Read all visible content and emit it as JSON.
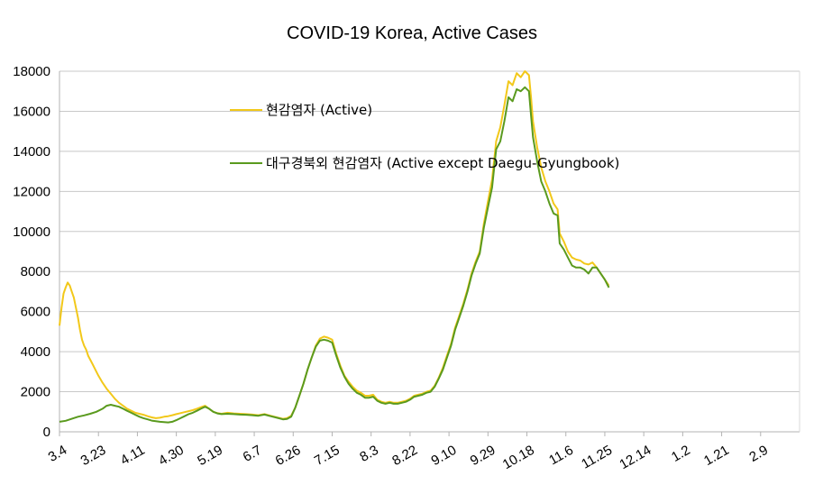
{
  "chart_data": {
    "type": "line",
    "title": "COVID-19 Korea, Active Cases",
    "xlabel": "",
    "ylabel": "",
    "ylim": [
      0,
      18000
    ],
    "yticks": [
      0,
      2000,
      4000,
      6000,
      8000,
      10000,
      12000,
      14000,
      16000,
      18000
    ],
    "xtick_labels": [
      "3.4",
      "3.23",
      "4.11",
      "4.30",
      "5.19",
      "6.7",
      "6.26",
      "7.15",
      "8.3",
      "8.22",
      "9.10",
      "9.29",
      "10.18",
      "11.6",
      "11.25",
      "12.14",
      "1.2",
      "1.21",
      "2.9"
    ],
    "grid": "horizontal",
    "legend_position": "upper-left inside plot",
    "x_start": "3.4",
    "x_step_days": 19,
    "series": [
      {
        "name": "현감염자 (Active)",
        "color": "#f2c81a",
        "points": [
          [
            0,
            5300
          ],
          [
            1,
            6200
          ],
          [
            2,
            6900
          ],
          [
            3,
            7200
          ],
          [
            4,
            7450
          ],
          [
            5,
            7300
          ],
          [
            6,
            7000
          ],
          [
            7,
            6700
          ],
          [
            8,
            6200
          ],
          [
            9,
            5700
          ],
          [
            10,
            5100
          ],
          [
            11,
            4600
          ],
          [
            12,
            4300
          ],
          [
            13,
            4100
          ],
          [
            14,
            3800
          ],
          [
            15,
            3600
          ],
          [
            16,
            3400
          ],
          [
            17,
            3200
          ],
          [
            18,
            3000
          ],
          [
            19,
            2800
          ],
          [
            21,
            2450
          ],
          [
            23,
            2150
          ],
          [
            25,
            1900
          ],
          [
            27,
            1650
          ],
          [
            29,
            1450
          ],
          [
            31,
            1300
          ],
          [
            33,
            1150
          ],
          [
            35,
            1050
          ],
          [
            37,
            950
          ],
          [
            39,
            900
          ],
          [
            41,
            850
          ],
          [
            43,
            780
          ],
          [
            45,
            720
          ],
          [
            47,
            680
          ],
          [
            49,
            700
          ],
          [
            51,
            750
          ],
          [
            53,
            780
          ],
          [
            55,
            830
          ],
          [
            57,
            880
          ],
          [
            59,
            930
          ],
          [
            61,
            980
          ],
          [
            63,
            1030
          ],
          [
            65,
            1080
          ],
          [
            67,
            1150
          ],
          [
            69,
            1230
          ],
          [
            71,
            1300
          ],
          [
            73,
            1150
          ],
          [
            75,
            1000
          ],
          [
            77,
            930
          ],
          [
            79,
            900
          ],
          [
            82,
            950
          ],
          [
            85,
            920
          ],
          [
            88,
            900
          ],
          [
            91,
            880
          ],
          [
            94,
            860
          ],
          [
            97,
            830
          ],
          [
            100,
            880
          ],
          [
            103,
            800
          ],
          [
            106,
            720
          ],
          [
            109,
            650
          ],
          [
            111,
            680
          ],
          [
            113,
            800
          ],
          [
            115,
            1200
          ],
          [
            117,
            1800
          ],
          [
            119,
            2400
          ],
          [
            121,
            3100
          ],
          [
            123,
            3700
          ],
          [
            125,
            4300
          ],
          [
            127,
            4650
          ],
          [
            129,
            4750
          ],
          [
            131,
            4700
          ],
          [
            133,
            4600
          ],
          [
            135,
            3900
          ],
          [
            137,
            3300
          ],
          [
            139,
            2800
          ],
          [
            141,
            2500
          ],
          [
            143,
            2250
          ],
          [
            145,
            2050
          ],
          [
            147,
            1950
          ],
          [
            149,
            1800
          ],
          [
            151,
            1800
          ],
          [
            153,
            1850
          ],
          [
            155,
            1600
          ],
          [
            157,
            1500
          ],
          [
            159,
            1450
          ],
          [
            161,
            1500
          ],
          [
            163,
            1450
          ],
          [
            165,
            1450
          ],
          [
            167,
            1500
          ],
          [
            169,
            1550
          ],
          [
            171,
            1650
          ],
          [
            173,
            1800
          ],
          [
            175,
            1850
          ],
          [
            177,
            1900
          ],
          [
            179,
            2000
          ],
          [
            181,
            2050
          ],
          [
            183,
            2300
          ],
          [
            185,
            2700
          ],
          [
            187,
            3200
          ],
          [
            189,
            3800
          ],
          [
            191,
            4400
          ],
          [
            193,
            5200
          ],
          [
            195,
            5800
          ],
          [
            197,
            6400
          ],
          [
            199,
            7100
          ],
          [
            201,
            7900
          ],
          [
            203,
            8500
          ],
          [
            205,
            9000
          ],
          [
            207,
            10400
          ],
          [
            209,
            11500
          ],
          [
            211,
            12600
          ],
          [
            213,
            14500
          ],
          [
            215,
            15200
          ],
          [
            217,
            16300
          ],
          [
            219,
            17500
          ],
          [
            221,
            17300
          ],
          [
            223,
            17900
          ],
          [
            225,
            17700
          ],
          [
            227,
            18000
          ],
          [
            229,
            17800
          ],
          [
            230,
            16700
          ],
          [
            231,
            15500
          ],
          [
            233,
            14200
          ],
          [
            235,
            13200
          ],
          [
            237,
            12500
          ],
          [
            239,
            12000
          ],
          [
            241,
            11400
          ],
          [
            243,
            11100
          ],
          [
            244,
            9900
          ],
          [
            246,
            9500
          ],
          [
            248,
            9000
          ],
          [
            250,
            8700
          ],
          [
            252,
            8600
          ],
          [
            254,
            8550
          ],
          [
            256,
            8400
          ],
          [
            258,
            8350
          ],
          [
            260,
            8450
          ],
          [
            262,
            8200
          ],
          [
            264,
            7900
          ],
          [
            266,
            7600
          ],
          [
            268,
            7300
          ]
        ]
      },
      {
        "name": "대구경북외 현감염자 (Active except Daegu-Gyungbook)",
        "color": "#5a9a1e",
        "points": [
          [
            0,
            500
          ],
          [
            3,
            550
          ],
          [
            6,
            650
          ],
          [
            9,
            750
          ],
          [
            12,
            820
          ],
          [
            15,
            900
          ],
          [
            18,
            1000
          ],
          [
            21,
            1150
          ],
          [
            23,
            1300
          ],
          [
            25,
            1350
          ],
          [
            27,
            1300
          ],
          [
            29,
            1250
          ],
          [
            31,
            1150
          ],
          [
            33,
            1050
          ],
          [
            35,
            950
          ],
          [
            37,
            850
          ],
          [
            39,
            750
          ],
          [
            41,
            680
          ],
          [
            43,
            620
          ],
          [
            45,
            560
          ],
          [
            47,
            530
          ],
          [
            49,
            500
          ],
          [
            51,
            480
          ],
          [
            53,
            470
          ],
          [
            55,
            500
          ],
          [
            57,
            580
          ],
          [
            59,
            680
          ],
          [
            61,
            780
          ],
          [
            63,
            880
          ],
          [
            65,
            950
          ],
          [
            67,
            1050
          ],
          [
            69,
            1150
          ],
          [
            71,
            1250
          ],
          [
            73,
            1150
          ],
          [
            75,
            1000
          ],
          [
            77,
            920
          ],
          [
            79,
            880
          ],
          [
            82,
            900
          ],
          [
            85,
            880
          ],
          [
            88,
            860
          ],
          [
            91,
            850
          ],
          [
            94,
            830
          ],
          [
            97,
            800
          ],
          [
            100,
            860
          ],
          [
            103,
            780
          ],
          [
            106,
            700
          ],
          [
            109,
            620
          ],
          [
            111,
            640
          ],
          [
            113,
            750
          ],
          [
            115,
            1200
          ],
          [
            117,
            1800
          ],
          [
            119,
            2400
          ],
          [
            121,
            3100
          ],
          [
            123,
            3700
          ],
          [
            125,
            4250
          ],
          [
            127,
            4550
          ],
          [
            129,
            4600
          ],
          [
            131,
            4550
          ],
          [
            133,
            4450
          ],
          [
            135,
            3800
          ],
          [
            137,
            3200
          ],
          [
            139,
            2750
          ],
          [
            141,
            2400
          ],
          [
            143,
            2150
          ],
          [
            145,
            1950
          ],
          [
            147,
            1850
          ],
          [
            149,
            1700
          ],
          [
            151,
            1700
          ],
          [
            153,
            1750
          ],
          [
            155,
            1550
          ],
          [
            157,
            1450
          ],
          [
            159,
            1400
          ],
          [
            161,
            1450
          ],
          [
            163,
            1400
          ],
          [
            165,
            1400
          ],
          [
            167,
            1450
          ],
          [
            169,
            1500
          ],
          [
            171,
            1600
          ],
          [
            173,
            1750
          ],
          [
            175,
            1800
          ],
          [
            177,
            1850
          ],
          [
            179,
            1950
          ],
          [
            181,
            2000
          ],
          [
            183,
            2250
          ],
          [
            185,
            2650
          ],
          [
            187,
            3100
          ],
          [
            189,
            3700
          ],
          [
            191,
            4300
          ],
          [
            193,
            5100
          ],
          [
            195,
            5700
          ],
          [
            197,
            6300
          ],
          [
            199,
            7000
          ],
          [
            201,
            7800
          ],
          [
            203,
            8400
          ],
          [
            205,
            8900
          ],
          [
            207,
            10200
          ],
          [
            209,
            11200
          ],
          [
            211,
            12200
          ],
          [
            213,
            14100
          ],
          [
            215,
            14500
          ],
          [
            217,
            15500
          ],
          [
            219,
            16700
          ],
          [
            221,
            16500
          ],
          [
            223,
            17100
          ],
          [
            225,
            17000
          ],
          [
            227,
            17200
          ],
          [
            229,
            17000
          ],
          [
            230,
            15800
          ],
          [
            231,
            14700
          ],
          [
            233,
            13500
          ],
          [
            235,
            12500
          ],
          [
            237,
            12000
          ],
          [
            239,
            11400
          ],
          [
            241,
            10900
          ],
          [
            243,
            10800
          ],
          [
            244,
            9400
          ],
          [
            246,
            9100
          ],
          [
            248,
            8700
          ],
          [
            250,
            8300
          ],
          [
            252,
            8200
          ],
          [
            254,
            8200
          ],
          [
            256,
            8100
          ],
          [
            258,
            7900
          ],
          [
            260,
            8200
          ],
          [
            262,
            8200
          ],
          [
            264,
            7900
          ],
          [
            266,
            7600
          ],
          [
            268,
            7200
          ]
        ]
      }
    ]
  }
}
